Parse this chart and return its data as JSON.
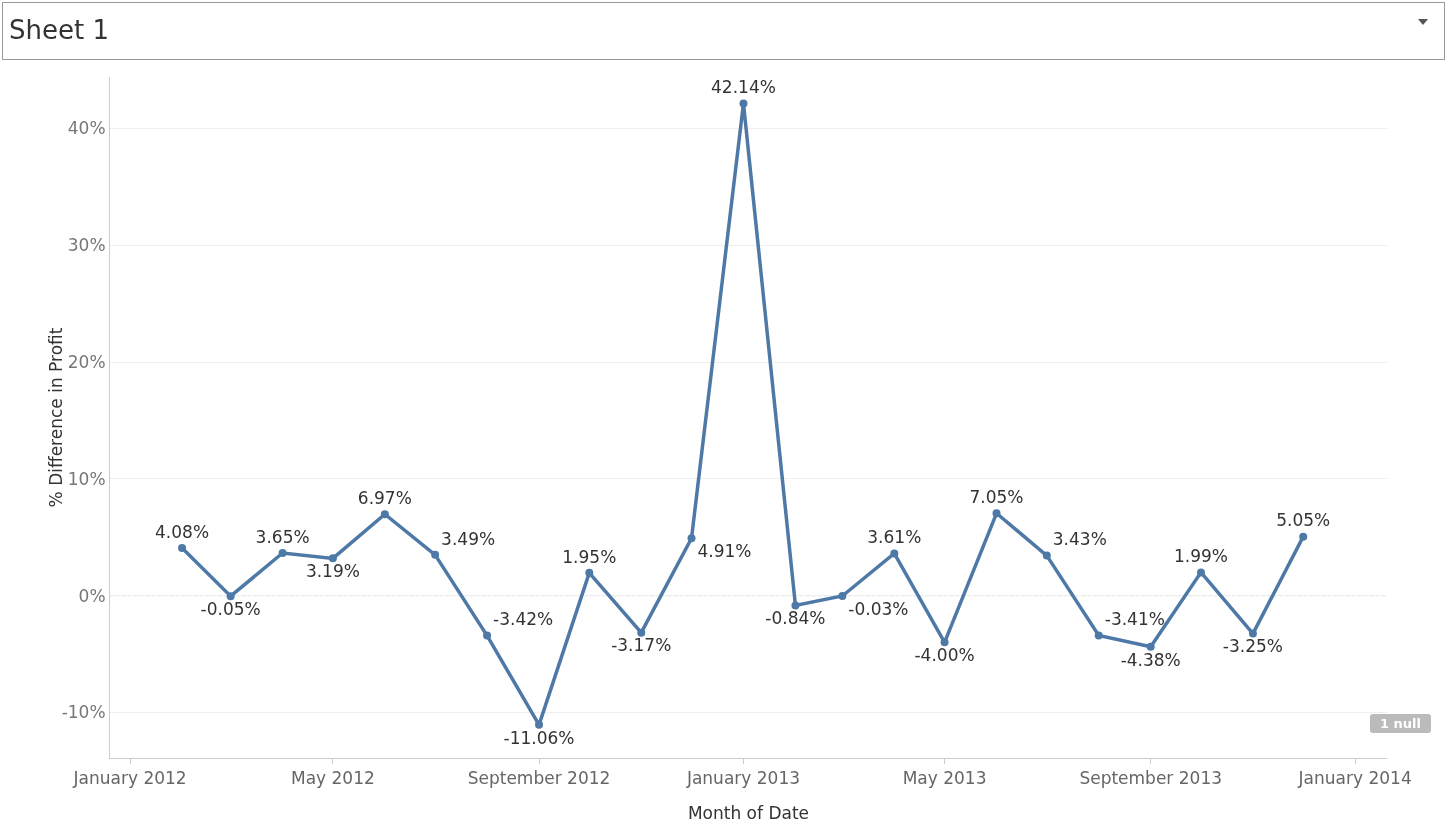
{
  "chart_data": {
    "type": "line",
    "title": "Sheet 1",
    "xlabel": "Month of Date",
    "ylabel": "% Difference in Profit",
    "x": [
      "2012-02",
      "2012-03",
      "2012-04",
      "2012-05",
      "2012-06",
      "2012-07",
      "2012-08",
      "2012-09",
      "2012-10",
      "2012-11",
      "2012-12",
      "2013-01",
      "2013-02",
      "2013-03",
      "2013-04",
      "2013-05",
      "2013-06",
      "2013-07",
      "2013-08",
      "2013-09",
      "2013-10",
      "2013-11",
      "2013-12"
    ],
    "series": [
      {
        "color": "#4e79a7",
        "values": [
          4.08,
          -0.05,
          3.65,
          3.19,
          6.97,
          3.49,
          -3.42,
          -11.06,
          1.95,
          -3.17,
          4.91,
          42.14,
          -0.84,
          -0.03,
          3.61,
          -4.0,
          7.05,
          3.43,
          -3.41,
          -4.38,
          1.99,
          -3.25,
          5.05
        ],
        "value_labels": [
          "4.08%",
          "-0.05%",
          "3.65%",
          "3.19%",
          "6.97%",
          "3.49%",
          "-3.42%",
          "-11.06%",
          "1.95%",
          "-3.17%",
          "4.91%",
          "42.14%",
          "-0.84%",
          "-0.03%",
          "3.61%",
          "-4.00%",
          "7.05%",
          "3.43%",
          "-3.41%",
          "-4.38%",
          "1.99%",
          "-3.25%",
          "5.05%"
        ]
      }
    ],
    "xlim": [
      "2011-12-20",
      "2014-01-20"
    ],
    "xticks": [
      {
        "value": "2012-01",
        "label": "January 2012"
      },
      {
        "value": "2012-05",
        "label": "May 2012"
      },
      {
        "value": "2012-09",
        "label": "September 2012"
      },
      {
        "value": "2013-01",
        "label": "January 2013"
      },
      {
        "value": "2013-05",
        "label": "May 2013"
      },
      {
        "value": "2013-09",
        "label": "September 2013"
      },
      {
        "value": "2014-01",
        "label": "January 2014"
      }
    ],
    "ylim": [
      -13.9,
      44.4
    ],
    "yticks": [
      {
        "value": -10,
        "label": "-10%"
      },
      {
        "value": 0,
        "label": "0%"
      },
      {
        "value": 10,
        "label": "10%"
      },
      {
        "value": 20,
        "label": "20%"
      },
      {
        "value": 30,
        "label": "30%"
      },
      {
        "value": 40,
        "label": "40%"
      }
    ],
    "grid": "y",
    "marker": "circle",
    "line_style": "solid",
    "ref_lines": [
      {
        "axis": "y",
        "value": 0,
        "color": "#aaaaaa",
        "line_style": "dotted"
      }
    ],
    "annotations": [
      "1 null"
    ]
  }
}
